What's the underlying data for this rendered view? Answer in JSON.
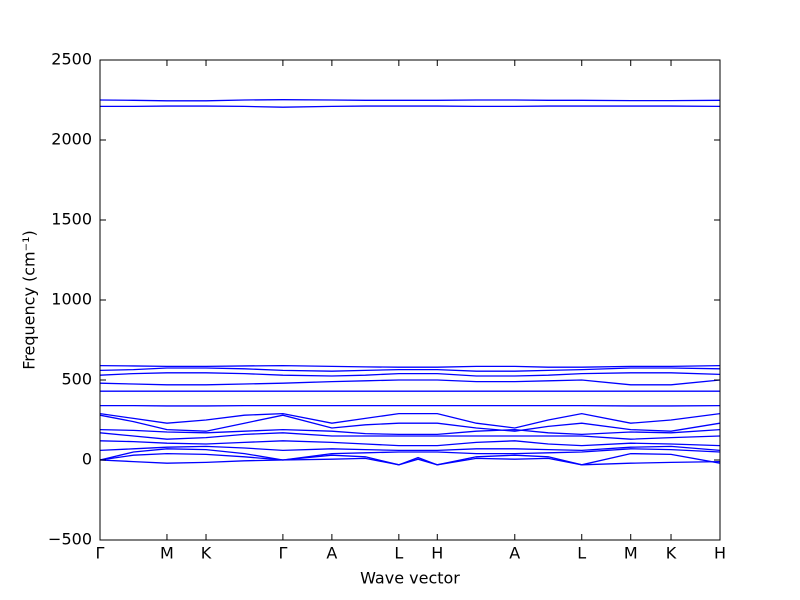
{
  "chart_data": {
    "type": "line",
    "xlabel": "Wave vector",
    "ylabel": "Frequency (cm⁻¹)",
    "xlim": [
      0,
      1
    ],
    "xticks": [
      {
        "value": 0,
        "label": "Γ"
      },
      {
        "value": 0.108,
        "label": "M"
      },
      {
        "value": 0.171,
        "label": "K"
      },
      {
        "value": 0.295,
        "label": "Γ"
      },
      {
        "value": 0.374,
        "label": "A"
      },
      {
        "value": 0.482,
        "label": "L"
      },
      {
        "value": 0.544,
        "label": "H"
      },
      {
        "value": 0.669,
        "label": "A"
      },
      {
        "value": 0.777,
        "label": "L"
      },
      {
        "value": 0.856,
        "label": "M"
      },
      {
        "value": 0.921,
        "label": "K"
      },
      {
        "value": 1.0,
        "label": "H"
      }
    ],
    "ylim": [
      -500,
      2500
    ],
    "yticks": [
      {
        "value": -500,
        "label": "−500"
      },
      0,
      500,
      1000,
      1500,
      2000,
      2500
    ],
    "x": [
      0,
      0.054,
      0.108,
      0.171,
      0.233,
      0.295,
      0.374,
      0.428,
      0.482,
      0.513,
      0.544,
      0.607,
      0.669,
      0.723,
      0.777,
      0.856,
      0.921,
      1.0
    ],
    "series": [
      {
        "color": "#0000ff",
        "values": [
          2250,
          2248,
          2245,
          2245,
          2250,
          2252,
          2250,
          2248,
          2248,
          2248,
          2248,
          2250,
          2250,
          2248,
          2248,
          2246,
          2246,
          2248
        ]
      },
      {
        "color": "#0000ff",
        "values": [
          2210,
          2210,
          2212,
          2212,
          2210,
          2205,
          2210,
          2212,
          2212,
          2212,
          2212,
          2210,
          2210,
          2212,
          2212,
          2212,
          2212,
          2210
        ]
      },
      {
        "color": "#0000ff",
        "values": [
          590,
          588,
          585,
          585,
          588,
          590,
          585,
          582,
          580,
          580,
          580,
          585,
          585,
          580,
          580,
          585,
          585,
          590
        ]
      },
      {
        "color": "#0000ff",
        "values": [
          560,
          565,
          575,
          575,
          570,
          560,
          555,
          560,
          565,
          565,
          565,
          555,
          555,
          560,
          565,
          575,
          575,
          570
        ]
      },
      {
        "color": "#0000ff",
        "values": [
          530,
          540,
          545,
          545,
          540,
          530,
          525,
          530,
          540,
          540,
          540,
          525,
          525,
          530,
          540,
          545,
          545,
          535
        ]
      },
      {
        "color": "#0000ff",
        "values": [
          480,
          475,
          470,
          470,
          475,
          480,
          490,
          495,
          500,
          500,
          500,
          490,
          490,
          495,
          500,
          470,
          470,
          500
        ]
      },
      {
        "color": "#0000ff",
        "values": [
          430,
          430,
          430,
          430,
          430,
          430,
          430,
          430,
          430,
          430,
          430,
          430,
          430,
          430,
          430,
          430,
          430,
          430
        ]
      },
      {
        "color": "#0000ff",
        "values": [
          340,
          340,
          338,
          338,
          340,
          340,
          340,
          340,
          340,
          340,
          340,
          340,
          340,
          340,
          340,
          338,
          338,
          340
        ]
      },
      {
        "color": "#0000ff",
        "values": [
          290,
          260,
          230,
          250,
          280,
          290,
          230,
          260,
          290,
          290,
          290,
          230,
          200,
          250,
          290,
          230,
          250,
          290
        ]
      },
      {
        "color": "#0000ff",
        "values": [
          280,
          240,
          190,
          180,
          230,
          280,
          200,
          220,
          230,
          230,
          230,
          200,
          180,
          210,
          230,
          190,
          180,
          230
        ]
      },
      {
        "color": "#0000ff",
        "values": [
          190,
          185,
          175,
          170,
          180,
          190,
          180,
          165,
          160,
          160,
          160,
          180,
          190,
          170,
          160,
          175,
          170,
          190
        ]
      },
      {
        "color": "#0000ff",
        "values": [
          170,
          150,
          130,
          140,
          160,
          170,
          150,
          150,
          150,
          150,
          150,
          150,
          150,
          150,
          150,
          130,
          140,
          150
        ]
      },
      {
        "color": "#0000ff",
        "values": [
          120,
          115,
          105,
          100,
          110,
          120,
          110,
          100,
          90,
          90,
          90,
          110,
          120,
          100,
          90,
          105,
          100,
          90
        ]
      },
      {
        "color": "#0000ff",
        "values": [
          60,
          70,
          80,
          85,
          75,
          60,
          70,
          65,
          60,
          60,
          60,
          70,
          70,
          65,
          60,
          80,
          85,
          60
        ]
      },
      {
        "color": "#0000ff",
        "values": [
          0,
          50,
          70,
          65,
          40,
          0,
          40,
          45,
          50,
          50,
          50,
          40,
          40,
          45,
          50,
          70,
          65,
          50
        ]
      },
      {
        "color": "#0000ff",
        "values": [
          0,
          30,
          40,
          35,
          20,
          0,
          30,
          20,
          -30,
          15,
          -30,
          20,
          30,
          20,
          -30,
          40,
          35,
          -20
        ]
      },
      {
        "color": "#0000ff",
        "values": [
          0,
          -10,
          -20,
          -15,
          -5,
          0,
          5,
          10,
          -30,
          5,
          -30,
          10,
          5,
          10,
          -30,
          -20,
          -15,
          -10
        ]
      }
    ]
  }
}
